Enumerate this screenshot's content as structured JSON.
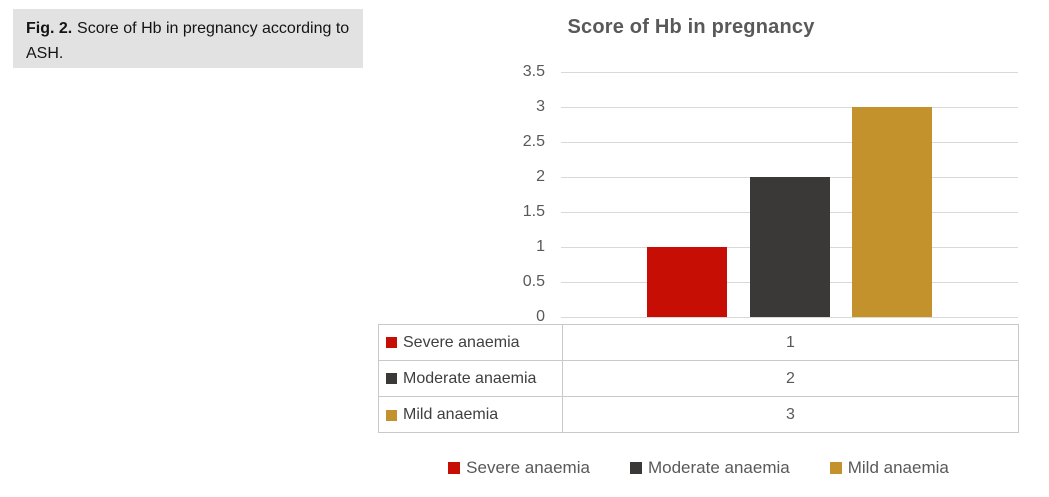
{
  "figure_caption": {
    "label": "Fig. 2.",
    "text": "Score of Hb in pregnancy according to ASH."
  },
  "chart_data": {
    "type": "bar",
    "title": "Score of Hb in pregnancy",
    "categories": [
      ""
    ],
    "series": [
      {
        "name": "Severe anaemia",
        "values": [
          1
        ],
        "color": "#c60e04"
      },
      {
        "name": "Moderate anaemia",
        "values": [
          2
        ],
        "color": "#3b3838"
      },
      {
        "name": "Mild anaemia",
        "values": [
          3
        ],
        "color": "#c3922d"
      }
    ],
    "ylim": [
      0,
      3.5
    ],
    "y_ticks": [
      "3.5",
      "3",
      "2.5",
      "2",
      "1.5",
      "1",
      "0.5",
      "0"
    ],
    "grid": true,
    "gridline_color": "#d9d9d9",
    "legend_position": "bottom",
    "data_table_shown": true
  },
  "data_table": {
    "rows": [
      {
        "label": "Severe anaemia",
        "value": "1"
      },
      {
        "label": "Moderate anaemia",
        "value": "2"
      },
      {
        "label": "Mild anaemia",
        "value": "3"
      }
    ]
  }
}
